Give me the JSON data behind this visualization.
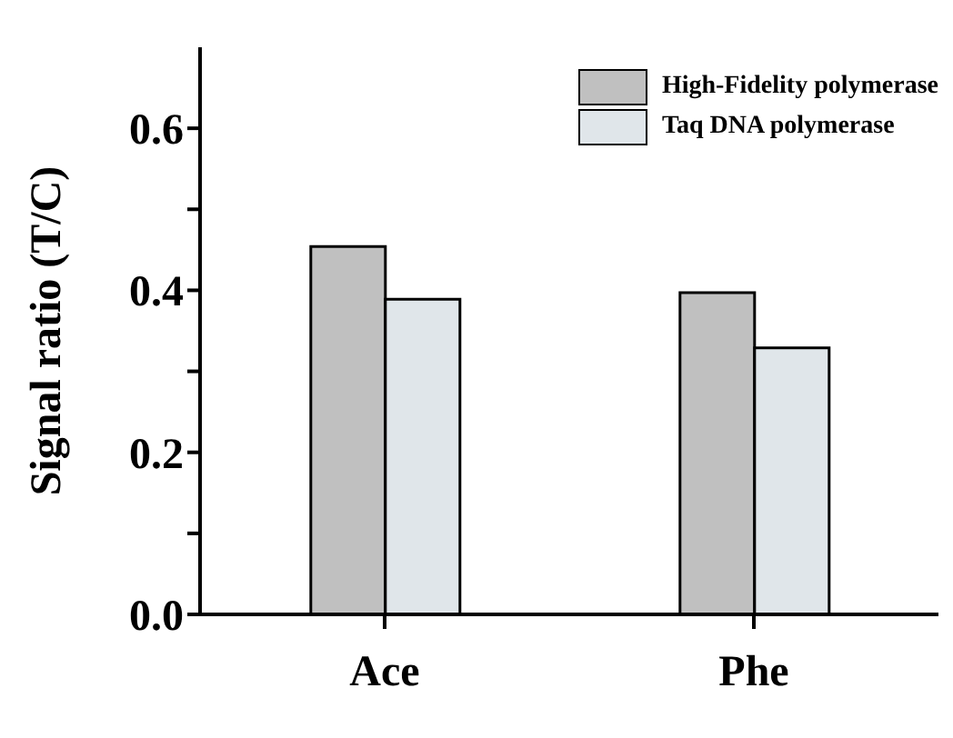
{
  "chart_data": {
    "type": "bar",
    "ylabel": "Signal ratio (T/C)",
    "categories": [
      "Ace",
      "Phe"
    ],
    "series": [
      {
        "name": "High-Fidelity polymerase",
        "color": "#c0c0c0",
        "values": [
          0.454,
          0.397
        ]
      },
      {
        "name": "Taq DNA polymerase",
        "color": "#e0e6ea",
        "values": [
          0.389,
          0.329
        ]
      }
    ],
    "ylim": [
      0,
      0.7
    ],
    "yticks": [
      {
        "value": 0,
        "label": "0.0"
      },
      {
        "value": 0.1,
        "label": null
      },
      {
        "value": 0.2,
        "label": "0.2"
      },
      {
        "value": 0.3,
        "label": null
      },
      {
        "value": 0.4,
        "label": "0.4"
      },
      {
        "value": 0.5,
        "label": null
      },
      {
        "value": 0.6,
        "label": "0.6"
      }
    ],
    "legend": "top right"
  }
}
